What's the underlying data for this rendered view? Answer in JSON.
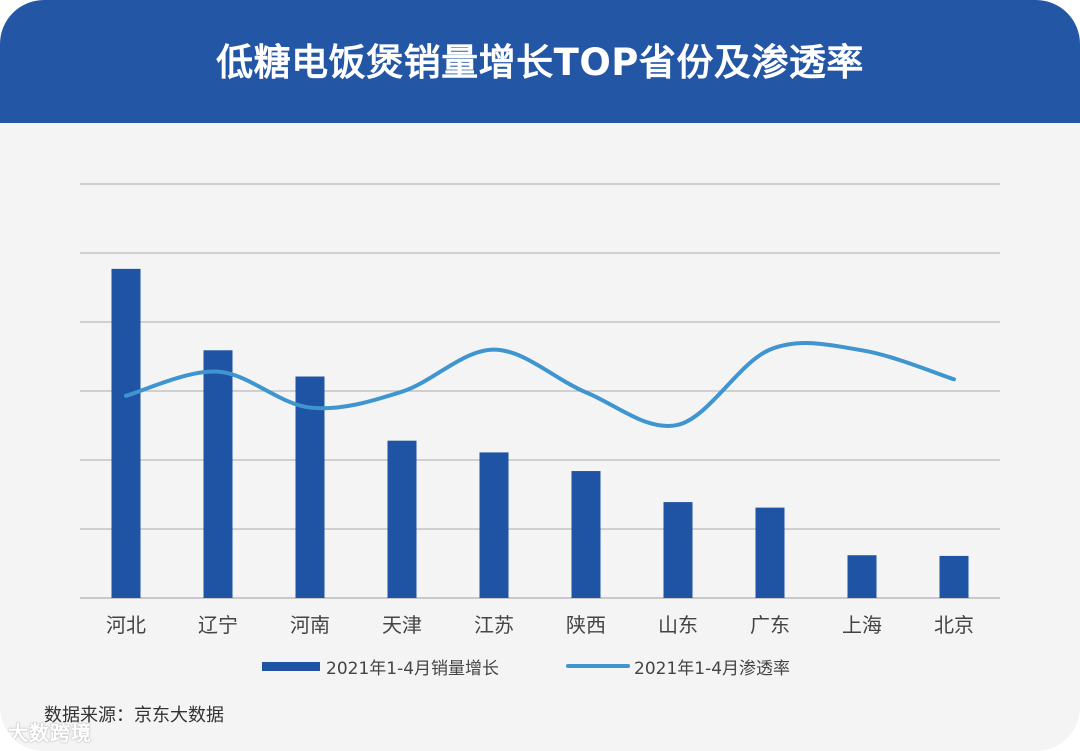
{
  "header": {
    "title": "低糖电饭煲销量增长TOP省份及渗透率"
  },
  "source": {
    "text": "数据来源：京东大数据"
  },
  "watermark": {
    "text": "大数跨境"
  },
  "colors": {
    "bar": "#1f54a4",
    "line": "#3f95cf",
    "header": "#2456a6",
    "grid": "#b9b9b9"
  },
  "chart_data": {
    "type": "bar",
    "categories": [
      "河北",
      "辽宁",
      "河南",
      "天津",
      "江苏",
      "陕西",
      "山东",
      "广东",
      "上海",
      "北京"
    ],
    "ylim": [
      0,
      6
    ],
    "grid": true,
    "legend": "bottom",
    "series": [
      {
        "name": "2021年1-4月销量增长",
        "type": "bar",
        "values": [
          4.77,
          3.59,
          3.21,
          2.28,
          2.11,
          1.84,
          1.39,
          1.31,
          0.62,
          0.61
        ]
      },
      {
        "name": "2021年1-4月渗透率",
        "type": "line",
        "values": [
          2.93,
          3.28,
          2.76,
          2.99,
          3.6,
          2.98,
          2.51,
          3.6,
          3.59,
          3.17
        ]
      }
    ]
  }
}
